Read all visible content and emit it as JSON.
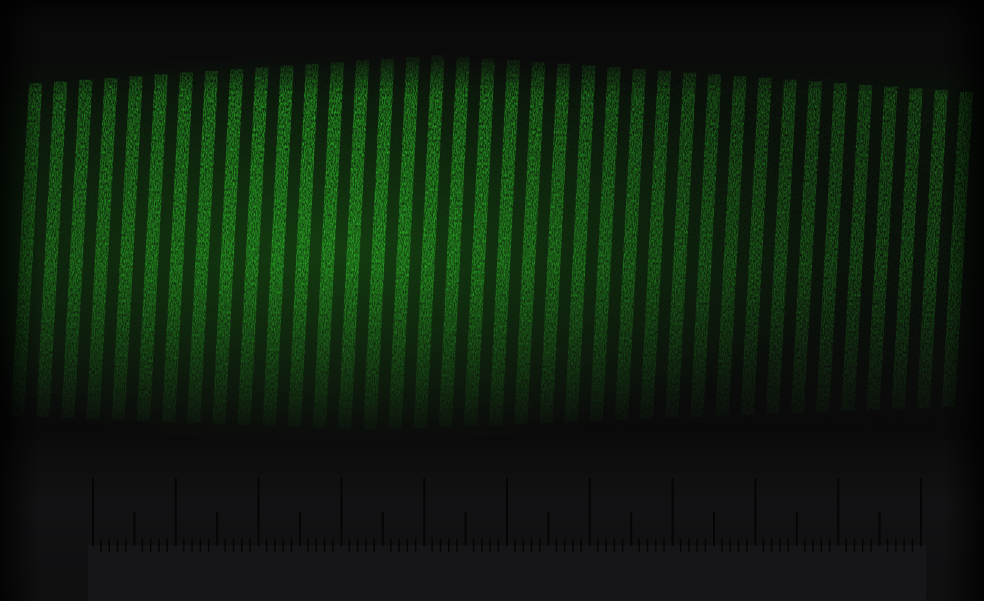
{
  "image": {
    "subject": "green-laser-interference-fringes",
    "colors": {
      "background": "#0b0a0b",
      "fringe": "#2fd02a",
      "fringe_dim": "#1a7a18",
      "ruler_tick": "#050505"
    },
    "fringe_count": 38,
    "ruler": {
      "major_tick_count": 11,
      "minor_per_major": 2
    }
  }
}
